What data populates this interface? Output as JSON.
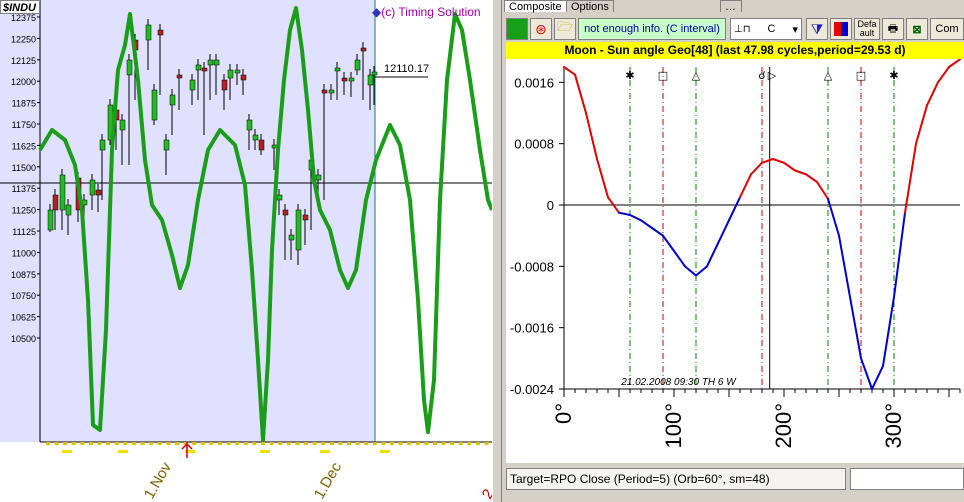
{
  "left_chart": {
    "symbol": "$INDU",
    "watermark": "(c) Timing Solution",
    "last_price_label": "12110.17",
    "y_ticks": [
      "12375",
      "12250",
      "12125",
      "12000",
      "11875",
      "11750",
      "11625",
      "11500",
      "11375",
      "11250",
      "11125",
      "11000",
      "10875",
      "10750",
      "10625",
      "10500"
    ],
    "x_ticks": [
      "1.Nov",
      "1.Dec",
      "2"
    ],
    "colors": {
      "projection": "#1a9e1a",
      "past_bg": "#e0e0ff",
      "up_candle": "#22bb22",
      "down_candle": "#b22222"
    }
  },
  "right_panel": {
    "tabs": [
      "Composite",
      "Options",
      ""
    ],
    "toolbar": {
      "info_label": "not enough info. (C interval)",
      "interval_select": "C",
      "default_label": "Defa ault",
      "com_label": "Com"
    },
    "title": "Moon - Sun angle Geo[48]  (last 47.98 cycles,period=29.53 d)",
    "status_text": "Target=RPO Close (Period=5) (Orb=60°, sm=48)"
  },
  "chart_data": {
    "type": "line",
    "title": "Moon - Sun angle Geo[48]  (last 47.98 cycles,period=29.53 d)",
    "xlabel": "",
    "ylabel": "",
    "x_ticks": [
      "0°",
      "100°",
      "200°",
      "300°"
    ],
    "y_ticks": [
      "0.0016",
      "0.0008",
      "0",
      "-0.0008",
      "-0.0016",
      "-0.0024"
    ],
    "xlim": [
      0,
      360
    ],
    "ylim": [
      -0.0024,
      0.0018
    ],
    "annotation": "21.02.2008  09:30 TH  6 W",
    "aspect_glyphs": [
      "✱",
      "□",
      "△",
      "☌",
      "△",
      "□",
      "✱"
    ],
    "aspect_positions_deg": [
      60,
      90,
      120,
      180,
      240,
      270,
      300
    ],
    "current_marker_deg": 187,
    "series": [
      {
        "x": [
          0,
          10,
          20,
          30,
          40,
          50,
          60,
          70,
          80,
          90,
          100,
          110,
          120,
          130,
          140,
          150,
          160,
          170,
          180,
          190,
          200,
          210,
          220,
          230,
          240,
          250,
          260,
          270,
          280,
          290,
          300,
          310,
          320,
          330,
          340,
          350,
          360
        ],
        "values": [
          0.0018,
          0.0017,
          0.0012,
          0.0006,
          0.0001,
          -0.0001,
          -0.00013,
          -0.0002,
          -0.0003,
          -0.0004,
          -0.0006,
          -0.0008,
          -0.00092,
          -0.0008,
          -0.0005,
          -0.0002,
          0.0001,
          0.0004,
          0.00055,
          0.0006,
          0.00055,
          0.00045,
          0.0004,
          0.0003,
          8e-05,
          -0.0004,
          -0.0012,
          -0.002,
          -0.0024,
          -0.0021,
          -0.0012,
          -0.0001,
          0.0008,
          0.0013,
          0.0016,
          0.0018,
          0.0019
        ]
      }
    ],
    "colors": {
      "positive": "#e00000",
      "negative": "#0000cc",
      "aspect_green": "#008000",
      "aspect_red": "#cc0000"
    }
  }
}
